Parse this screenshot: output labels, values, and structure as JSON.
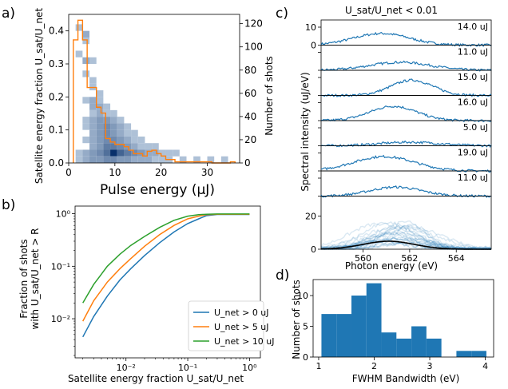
{
  "panel_labels": {
    "a": "a)",
    "b": "b)",
    "c": "c)",
    "d": "d)"
  },
  "colors": {
    "blue": "#1f77b4",
    "orange": "#ff7f0e",
    "green": "#2ca02c",
    "black": "#000000",
    "label_gray": "#8c8c8c",
    "heat_light": "#deebf7",
    "heat_dark": "#08306b"
  },
  "chart_data": [
    {
      "id": "a",
      "type": "heatmap",
      "xlabel": "Pulse energy (μJ)",
      "ylabel": "Satellite energy fraction U_sat/U_net",
      "ylabel2": "Number of shots",
      "xlim": [
        0,
        37
      ],
      "ylim": [
        0,
        0.45
      ],
      "y2lim": [
        0,
        128
      ],
      "xticks": [
        0,
        10,
        20,
        30
      ],
      "yticks": [
        0.0,
        0.1,
        0.2,
        0.3,
        0.4
      ],
      "y2ticks": [
        0,
        20,
        40,
        60,
        80,
        100,
        120
      ],
      "xticklabels": [
        "0",
        "10",
        "20",
        "30"
      ],
      "yticklabels": [
        "0.0",
        "0.1",
        "0.2",
        "0.3",
        "0.4"
      ],
      "y2ticklabels": [
        "0",
        "20",
        "40",
        "60",
        "80",
        "100",
        "120"
      ],
      "heatmap": {
        "x_bin": 1.5,
        "y_bin": 0.02,
        "cells": [
          [
            1.5,
            0.4,
            1
          ],
          [
            3,
            0.38,
            2
          ],
          [
            3,
            0.36,
            1
          ],
          [
            1.5,
            0.32,
            1
          ],
          [
            3,
            0.3,
            2
          ],
          [
            4.5,
            0.3,
            1
          ],
          [
            3,
            0.26,
            1
          ],
          [
            4.5,
            0.24,
            1
          ],
          [
            4.5,
            0.22,
            1
          ],
          [
            6,
            0.2,
            1
          ],
          [
            3,
            0.18,
            1
          ],
          [
            4.5,
            0.18,
            2
          ],
          [
            6,
            0.18,
            1
          ],
          [
            4.5,
            0.16,
            2
          ],
          [
            6,
            0.16,
            2
          ],
          [
            7.5,
            0.16,
            1
          ],
          [
            4.5,
            0.14,
            1
          ],
          [
            6,
            0.14,
            2
          ],
          [
            7.5,
            0.14,
            1
          ],
          [
            9,
            0.14,
            1
          ],
          [
            3,
            0.12,
            1
          ],
          [
            4.5,
            0.12,
            2
          ],
          [
            6,
            0.12,
            3
          ],
          [
            7.5,
            0.12,
            3
          ],
          [
            9,
            0.12,
            2
          ],
          [
            10.5,
            0.12,
            1
          ],
          [
            3,
            0.1,
            1
          ],
          [
            4.5,
            0.1,
            2
          ],
          [
            6,
            0.1,
            3
          ],
          [
            7.5,
            0.1,
            4
          ],
          [
            9,
            0.1,
            3
          ],
          [
            10.5,
            0.1,
            2
          ],
          [
            12,
            0.1,
            1
          ],
          [
            4.5,
            0.08,
            2
          ],
          [
            6,
            0.08,
            3
          ],
          [
            7.5,
            0.08,
            4
          ],
          [
            9,
            0.08,
            3
          ],
          [
            10.5,
            0.08,
            2
          ],
          [
            12,
            0.08,
            1
          ],
          [
            13.5,
            0.08,
            1
          ],
          [
            3,
            0.06,
            1
          ],
          [
            4.5,
            0.06,
            2
          ],
          [
            6,
            0.06,
            3
          ],
          [
            7.5,
            0.06,
            4
          ],
          [
            9,
            0.06,
            4
          ],
          [
            10.5,
            0.06,
            3
          ],
          [
            12,
            0.06,
            2
          ],
          [
            13.5,
            0.06,
            1
          ],
          [
            15,
            0.06,
            1
          ],
          [
            4.5,
            0.04,
            2
          ],
          [
            6,
            0.04,
            3
          ],
          [
            7.5,
            0.04,
            5
          ],
          [
            9,
            0.04,
            5
          ],
          [
            10.5,
            0.04,
            4
          ],
          [
            12,
            0.04,
            3
          ],
          [
            13.5,
            0.04,
            2
          ],
          [
            15,
            0.04,
            1
          ],
          [
            16.5,
            0.04,
            1
          ],
          [
            18,
            0.04,
            1
          ],
          [
            1.5,
            0.02,
            1
          ],
          [
            3,
            0.02,
            2
          ],
          [
            4.5,
            0.02,
            3
          ],
          [
            6,
            0.02,
            4
          ],
          [
            7.5,
            0.02,
            6
          ],
          [
            9,
            0.02,
            12
          ],
          [
            10.5,
            0.02,
            7
          ],
          [
            12,
            0.02,
            5
          ],
          [
            13.5,
            0.02,
            4
          ],
          [
            15,
            0.02,
            3
          ],
          [
            16.5,
            0.02,
            2
          ],
          [
            18,
            0.02,
            2
          ],
          [
            19.5,
            0.02,
            1
          ],
          [
            21,
            0.02,
            1
          ],
          [
            22.5,
            0.02,
            1
          ],
          [
            1.5,
            0.0,
            1
          ],
          [
            3,
            0.0,
            2
          ],
          [
            4.5,
            0.0,
            3
          ],
          [
            6,
            0.0,
            3
          ],
          [
            7.5,
            0.0,
            4
          ],
          [
            9,
            0.0,
            4
          ],
          [
            10.5,
            0.0,
            3
          ],
          [
            12,
            0.0,
            3
          ],
          [
            13.5,
            0.0,
            2
          ],
          [
            15,
            0.0,
            2
          ],
          [
            16.5,
            0.0,
            2
          ],
          [
            18,
            0.0,
            1
          ],
          [
            19.5,
            0.0,
            1
          ],
          [
            21,
            0.0,
            1
          ],
          [
            24,
            0.0,
            1
          ],
          [
            27,
            0.0,
            1
          ],
          [
            30,
            0.0,
            1
          ],
          [
            33,
            0.0,
            1
          ]
        ]
      },
      "histogram": {
        "name": "Number of shots",
        "edges": [
          1,
          2,
          3,
          4,
          5,
          6,
          7,
          8,
          9,
          10,
          11,
          12,
          13,
          14,
          15,
          16,
          17,
          18,
          19,
          20,
          21,
          22,
          23,
          24,
          25,
          26,
          27,
          28,
          29,
          30,
          31,
          32,
          33,
          34,
          35,
          36
        ],
        "counts": [
          106,
          123,
          106,
          65,
          65,
          48,
          43,
          21,
          18,
          16,
          16,
          14,
          11,
          8,
          8,
          6,
          10,
          11,
          8,
          6,
          3,
          3,
          1,
          1,
          1,
          1,
          1,
          1,
          1,
          1,
          0,
          0,
          0,
          0,
          1
        ]
      }
    },
    {
      "id": "b",
      "type": "line",
      "xscale": "log",
      "yscale": "log",
      "xlabel": "Satellite energy fraction U_sat/U_net",
      "ylabel_line1": "Fraction of shots",
      "ylabel_line2": "with U_sat/U_net > R",
      "xlim": [
        0.0015,
        1.5
      ],
      "ylim": [
        0.0018,
        1.4
      ],
      "xticklabels": [
        "10⁻²",
        "10⁻¹",
        "10⁰"
      ],
      "yticklabels": [
        "10⁻²",
        "10⁻¹",
        "10⁰"
      ],
      "legend": "lower-right",
      "series": [
        {
          "name": "U_net > 0 uJ",
          "color": "#1f77b4",
          "x": [
            0.002,
            0.003,
            0.005,
            0.008,
            0.012,
            0.02,
            0.035,
            0.06,
            0.1,
            0.15,
            0.2,
            0.3,
            1.0
          ],
          "y": [
            0.0045,
            0.011,
            0.027,
            0.055,
            0.09,
            0.16,
            0.28,
            0.45,
            0.65,
            0.8,
            0.92,
            0.97,
            0.97
          ]
        },
        {
          "name": "U_net > 5 uJ",
          "color": "#ff7f0e",
          "x": [
            0.002,
            0.003,
            0.005,
            0.008,
            0.012,
            0.02,
            0.035,
            0.06,
            0.1,
            0.15,
            0.2,
            0.3,
            1.0
          ],
          "y": [
            0.009,
            0.022,
            0.05,
            0.09,
            0.14,
            0.24,
            0.4,
            0.6,
            0.8,
            0.9,
            0.96,
            0.98,
            0.98
          ]
        },
        {
          "name": "U_net > 10 uJ",
          "color": "#2ca02c",
          "x": [
            0.002,
            0.003,
            0.005,
            0.008,
            0.012,
            0.02,
            0.035,
            0.06,
            0.1,
            0.15,
            0.2,
            0.3,
            1.0
          ],
          "y": [
            0.02,
            0.045,
            0.1,
            0.17,
            0.25,
            0.37,
            0.55,
            0.75,
            0.9,
            0.96,
            0.98,
            0.99,
            0.99
          ]
        }
      ]
    },
    {
      "id": "c",
      "type": "line",
      "title": "U_sat/U_net < 0.01",
      "xlabel": "Photon energy (eV)",
      "ylabel": "Spectral intensity (uJ/eV)",
      "xlim": [
        558.2,
        565.5
      ],
      "xticks": [
        560,
        562,
        564
      ],
      "xticklabels": [
        "560",
        "562",
        "564"
      ],
      "row_yticks": [
        "0",
        "10"
      ],
      "big_yticks": [
        "0",
        "20"
      ],
      "row_ymax": 14,
      "big_ymax": 32,
      "rows": [
        {
          "label": "14.0 uJ",
          "center": 560.8,
          "width": 1.2,
          "amp": 6.5
        },
        {
          "label": "11.0 uJ",
          "center": 561.6,
          "width": 1.3,
          "amp": 4.5
        },
        {
          "label": "15.0 uJ",
          "center": 562.1,
          "width": 0.9,
          "amp": 8.5
        },
        {
          "label": "16.0 uJ",
          "center": 561.3,
          "width": 1.0,
          "amp": 8.0
        },
        {
          "label": "5.0 uJ",
          "center": 562.0,
          "width": 1.3,
          "amp": 2.0
        },
        {
          "label": "19.0 uJ",
          "center": 560.9,
          "width": 1.3,
          "amp": 8.0
        },
        {
          "label": "11.0 uJ",
          "center": 561.4,
          "width": 1.1,
          "amp": 5.0
        }
      ],
      "mean": {
        "center": 561.1,
        "width": 1.1,
        "amp": 4.8
      }
    },
    {
      "id": "d",
      "type": "bar",
      "xlabel": "FWHM Bandwidth (eV)",
      "ylabel": "Number of shots",
      "xlim": [
        0.9,
        4.15
      ],
      "ylim": [
        0,
        12.6
      ],
      "xticks": [
        1,
        2,
        3,
        4
      ],
      "yticks": [
        0,
        5,
        10
      ],
      "xticklabels": [
        "1",
        "2",
        "3",
        "4"
      ],
      "yticklabels": [
        "0",
        "5",
        "10"
      ],
      "edges": [
        1.05,
        1.32,
        1.59,
        1.86,
        2.13,
        2.4,
        2.67,
        2.94,
        3.21,
        3.48,
        3.75,
        4.02
      ],
      "values": [
        7,
        7,
        10,
        12,
        4,
        3,
        5,
        3,
        0,
        1,
        1
      ]
    }
  ]
}
